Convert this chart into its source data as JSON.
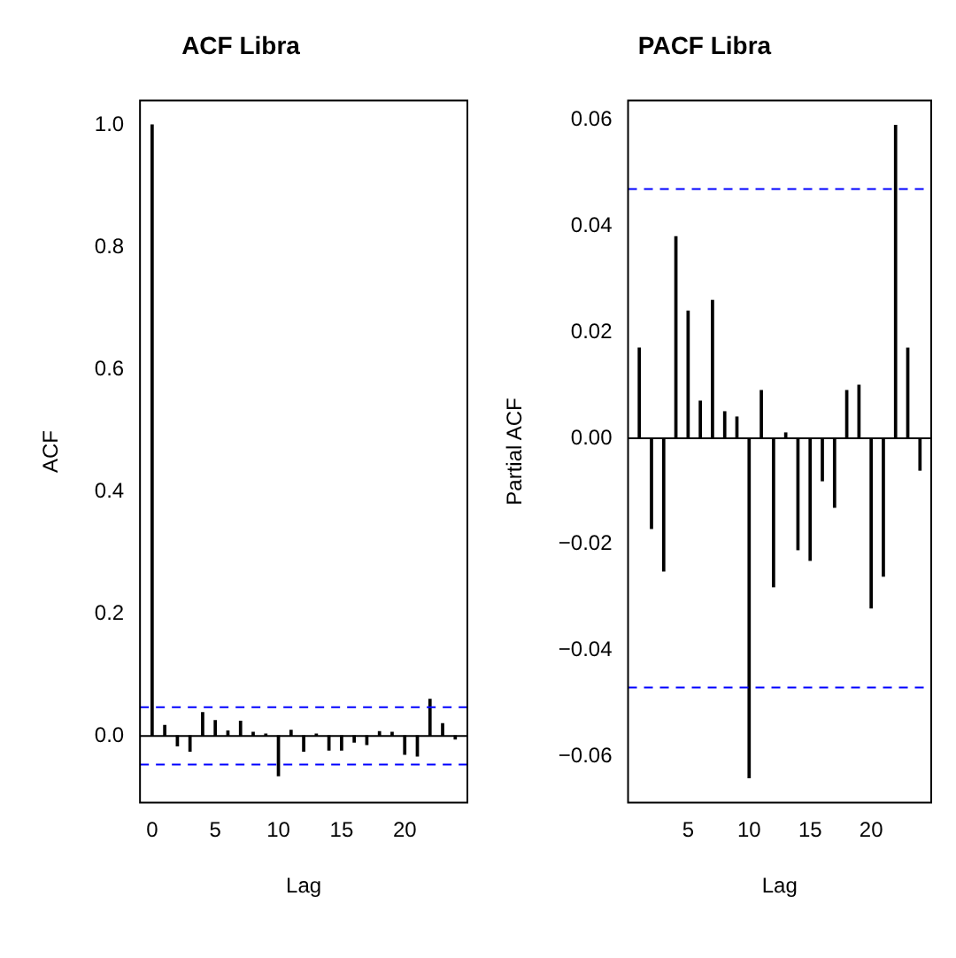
{
  "chart_data": [
    {
      "type": "bar",
      "title": "ACF Libra",
      "xlabel": "Lag",
      "ylabel": "ACF",
      "x": [
        0,
        1,
        2,
        3,
        4,
        5,
        6,
        7,
        8,
        9,
        10,
        11,
        12,
        13,
        14,
        15,
        16,
        17,
        18,
        19,
        20,
        21,
        22,
        23,
        24
      ],
      "values": [
        1.0,
        0.017,
        -0.016,
        -0.025,
        0.038,
        0.025,
        0.008,
        0.024,
        0.006,
        0.003,
        -0.065,
        0.009,
        -0.025,
        0.003,
        -0.023,
        -0.023,
        -0.01,
        -0.014,
        0.007,
        0.006,
        -0.03,
        -0.033,
        0.06,
        0.02,
        -0.005
      ],
      "color": "#000000",
      "xlim": [
        -0.96,
        24.96
      ],
      "xticks": [
        0,
        5,
        10,
        15,
        20
      ],
      "ylim": [
        -0.109,
        1.04
      ],
      "yticks": [
        {
          "value": 0,
          "label": "0.0"
        },
        0.2,
        0.4,
        0.6,
        0.8,
        {
          "value": 1,
          "label": "1.0"
        }
      ],
      "ref_lines": [
        {
          "axis": "y",
          "value": 0,
          "color": "#000000",
          "line_style": "solid"
        },
        {
          "axis": "y",
          "value": 0.047,
          "color": "#0000ff",
          "line_style": "dashed"
        },
        {
          "axis": "y",
          "value": -0.047,
          "color": "#0000ff",
          "line_style": "dashed"
        }
      ],
      "grid": false,
      "legend": false
    },
    {
      "type": "bar",
      "title": "PACF Libra",
      "xlabel": "Lag",
      "ylabel": "Partial ACF",
      "x": [
        1,
        2,
        3,
        4,
        5,
        6,
        7,
        8,
        9,
        10,
        11,
        12,
        13,
        14,
        15,
        16,
        17,
        18,
        19,
        20,
        21,
        22,
        23,
        24
      ],
      "values": [
        0.017,
        -0.017,
        -0.025,
        0.038,
        0.024,
        0.007,
        0.026,
        0.005,
        0.004,
        -0.064,
        0.009,
        -0.028,
        0.001,
        -0.021,
        -0.023,
        -0.008,
        -0.013,
        0.009,
        0.01,
        -0.032,
        -0.026,
        0.059,
        0.017,
        -0.006
      ],
      "color": "#000000",
      "xlim": [
        0.08,
        24.92
      ],
      "xticks": [
        5,
        10,
        15,
        20
      ],
      "ylim": [
        -0.0687,
        0.0637
      ],
      "yticks": [
        {
          "value": -0.06,
          "label": "−0.06"
        },
        {
          "value": -0.04,
          "label": "−0.04"
        },
        {
          "value": -0.02,
          "label": "−0.02"
        },
        {
          "value": 0,
          "label": "0.00"
        },
        0.02,
        0.04,
        0.06
      ],
      "ref_lines": [
        {
          "axis": "y",
          "value": 0,
          "color": "#000000",
          "line_style": "solid"
        },
        {
          "axis": "y",
          "value": 0.047,
          "color": "#0000ff",
          "line_style": "dashed"
        },
        {
          "axis": "y",
          "value": -0.047,
          "color": "#0000ff",
          "line_style": "dashed"
        }
      ],
      "grid": false,
      "legend": false
    }
  ]
}
